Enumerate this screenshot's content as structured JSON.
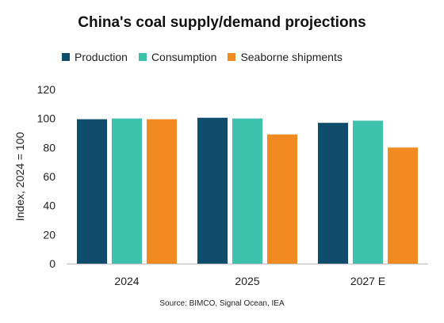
{
  "chart_data": {
    "type": "bar",
    "title": "China's coal supply/demand projections",
    "ylabel": "Index, 2024 = 100",
    "xlabel": "",
    "ylim": [
      0,
      120
    ],
    "yticks": [
      0,
      20,
      40,
      60,
      80,
      100,
      120
    ],
    "grid": false,
    "legend_position": "top",
    "categories": [
      "2024",
      "2025",
      "2027 E"
    ],
    "series": [
      {
        "name": "Production",
        "color": "#0f4c6b",
        "values": [
          99.5,
          100.5,
          97
        ]
      },
      {
        "name": "Consumption",
        "color": "#3fc2ad",
        "values": [
          100,
          100,
          98.5
        ]
      },
      {
        "name": "Seaborne shipments",
        "color": "#f28a22",
        "values": [
          99.5,
          89,
          80
        ]
      }
    ],
    "source": "Source: BIMCO, Signal Ocean, IEA"
  }
}
